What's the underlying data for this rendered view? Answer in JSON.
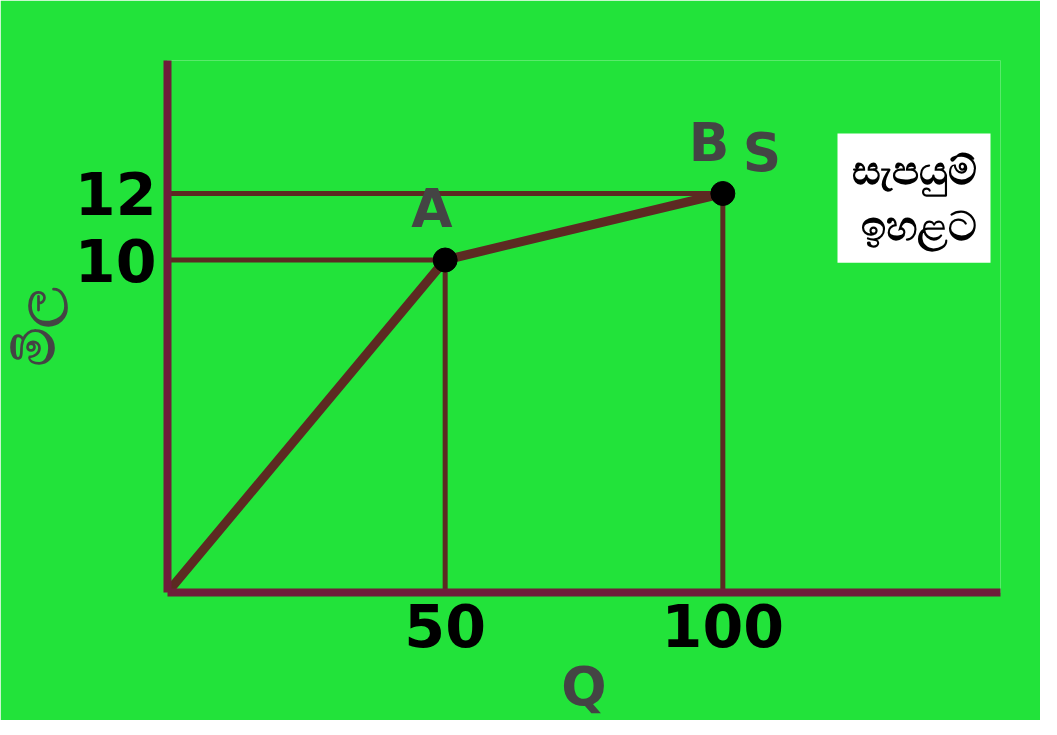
{
  "chart_data": {
    "type": "line",
    "xlabel": "Q",
    "ylabel": "මිල",
    "xlim": [
      0,
      150
    ],
    "ylim": [
      0,
      16
    ],
    "xticks": [
      50,
      100
    ],
    "yticks": [
      10,
      12
    ],
    "grid": false,
    "line_style": "solid",
    "series": [
      {
        "name": "S",
        "color": "#5c2a22",
        "x": [
          0,
          50,
          100
        ],
        "values": [
          0,
          10,
          12
        ]
      },
      {
        "color": "#5c2a22",
        "x": [
          0,
          50,
          50
        ],
        "values": [
          10,
          10,
          0
        ]
      },
      {
        "color": "#5c2a22",
        "x": [
          0,
          100,
          100
        ],
        "values": [
          12,
          12,
          0
        ]
      },
      {
        "type": "scatter",
        "color": "#000000",
        "x": [
          50,
          100
        ],
        "values": [
          10,
          12
        ]
      }
    ],
    "annotations": [
      {
        "text": "A",
        "x": 50,
        "y": 10
      },
      {
        "text": "B",
        "x": 100,
        "y": 12
      },
      "සැපයුම්\nඉහළට"
    ]
  }
}
